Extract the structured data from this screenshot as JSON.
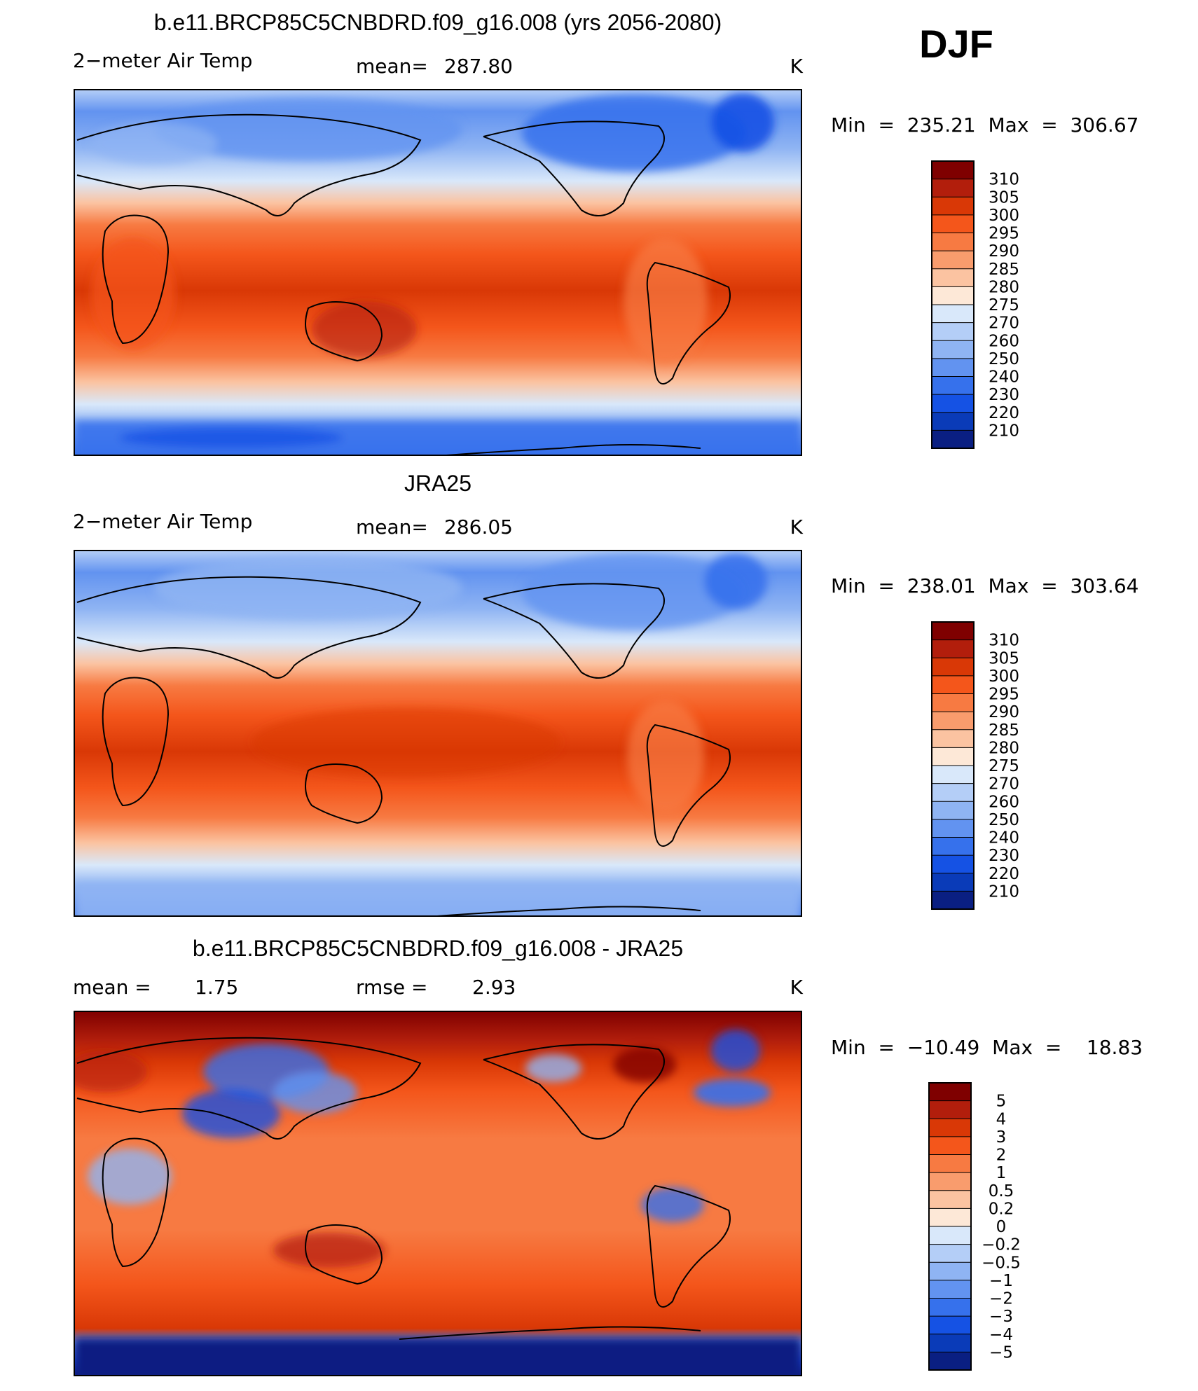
{
  "season": "DJF",
  "panels": [
    {
      "title": "b.e11.BRCP85C5CNBDRD.f09_g16.008 (yrs 2056-2080)",
      "left": "2−meter Air Temp",
      "center_label": "mean=",
      "center_value": "287.80",
      "unit": "K",
      "minmax": "Min  =  235.21  Max  =  306.67",
      "kind": "model"
    },
    {
      "title": "JRA25",
      "left": "2−meter Air Temp",
      "center_label": "mean=",
      "center_value": "286.05",
      "unit": "K",
      "minmax": "Min  =  238.01  Max  =  303.64",
      "kind": "obs"
    },
    {
      "title": "b.e11.BRCP85C5CNBDRD.f09_g16.008 - JRA25",
      "left_label": "mean =",
      "left_value": "1.75",
      "center_label": "rmse =",
      "center_value": "2.93",
      "unit": "K",
      "minmax": "Min  =  −10.49  Max  =    18.83",
      "kind": "diff"
    }
  ],
  "colorbars": [
    {
      "labels": [
        "310",
        "305",
        "300",
        "295",
        "290",
        "285",
        "280",
        "275",
        "270",
        "260",
        "250",
        "240",
        "230",
        "220",
        "210"
      ],
      "colors": [
        "#7f0000",
        "#b21e0c",
        "#d93806",
        "#f4561b",
        "#f77a42",
        "#f99c6d",
        "#fbc3a1",
        "#fde8d7",
        "#d9e8fa",
        "#b4cef7",
        "#8fb4f3",
        "#6293f0",
        "#3671ec",
        "#1552e4",
        "#0a3bb8",
        "#0a1f82"
      ]
    },
    {
      "labels": [
        "310",
        "305",
        "300",
        "295",
        "290",
        "285",
        "280",
        "275",
        "270",
        "260",
        "250",
        "240",
        "230",
        "220",
        "210"
      ],
      "colors": [
        "#7f0000",
        "#b21e0c",
        "#d93806",
        "#f4561b",
        "#f77a42",
        "#f99c6d",
        "#fbc3a1",
        "#fde8d7",
        "#d9e8fa",
        "#b4cef7",
        "#8fb4f3",
        "#6293f0",
        "#3671ec",
        "#1552e4",
        "#0a3bb8",
        "#0a1f82"
      ]
    },
    {
      "labels": [
        "5",
        "4",
        "3",
        "2",
        "1",
        "0.5",
        "0.2",
        "0",
        "−0.2",
        "−0.5",
        "−1",
        "−2",
        "−3",
        "−4",
        "−5"
      ],
      "colors": [
        "#7f0000",
        "#b21e0c",
        "#d93806",
        "#f4561b",
        "#f77a42",
        "#f99c6d",
        "#fbc3a1",
        "#fde8d7",
        "#d9e8fa",
        "#b4cef7",
        "#8fb4f3",
        "#6293f0",
        "#3671ec",
        "#1552e4",
        "#0a3bb8",
        "#0a1f82"
      ]
    }
  ],
  "chart_data": [
    {
      "type": "heatmap",
      "title": "b.e11.BRCP85C5CNBDRD.f09_g16.008 (yrs 2056-2080)",
      "variable": "2-meter Air Temp",
      "units": "K",
      "mean": 287.8,
      "min": 235.21,
      "max": 306.67,
      "contour_levels": [
        210,
        220,
        230,
        240,
        250,
        260,
        270,
        275,
        280,
        285,
        290,
        295,
        300,
        305,
        310
      ]
    },
    {
      "type": "heatmap",
      "title": "JRA25",
      "variable": "2-meter Air Temp",
      "units": "K",
      "mean": 286.05,
      "min": 238.01,
      "max": 303.64,
      "contour_levels": [
        210,
        220,
        230,
        240,
        250,
        260,
        270,
        275,
        280,
        285,
        290,
        295,
        300,
        305,
        310
      ]
    },
    {
      "type": "heatmap",
      "title": "b.e11.BRCP85C5CNBDRD.f09_g16.008 - JRA25",
      "variable": "2-meter Air Temp difference",
      "units": "K",
      "mean": 1.75,
      "rmse": 2.93,
      "min": -10.49,
      "max": 18.83,
      "contour_levels": [
        -5,
        -4,
        -3,
        -2,
        -1,
        -0.5,
        -0.2,
        0,
        0.2,
        0.5,
        1,
        2,
        3,
        4,
        5
      ]
    }
  ]
}
